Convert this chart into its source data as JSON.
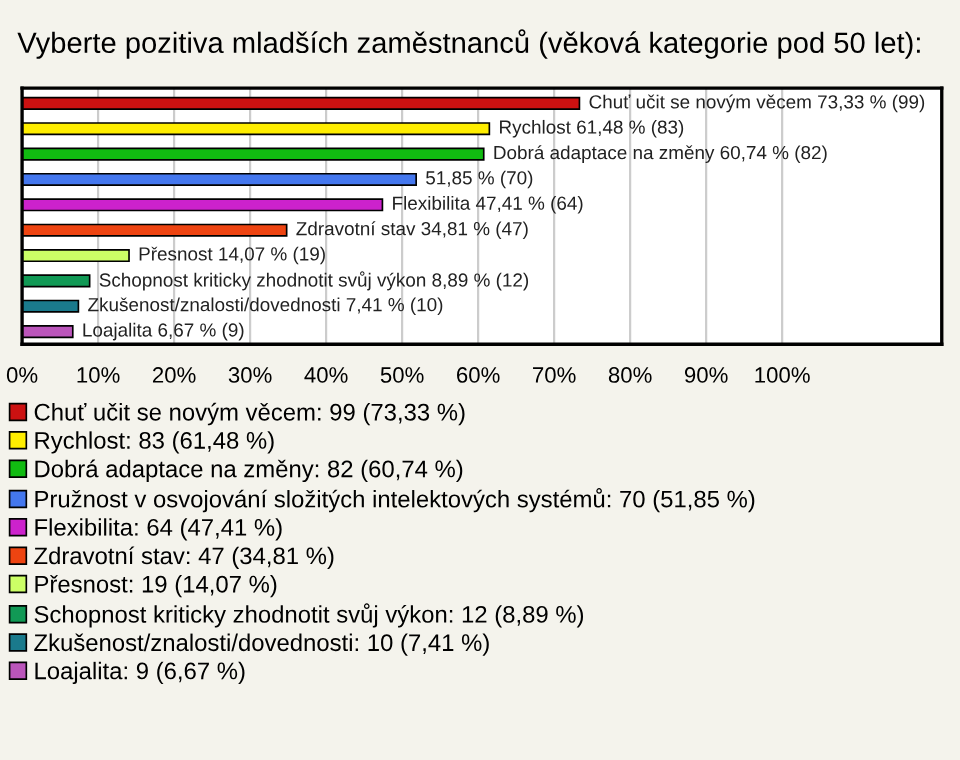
{
  "chart_data": {
    "type": "bar",
    "orientation": "horizontal",
    "stacked": true,
    "title": "Vyberte pozitiva mladších zaměstnanců (věková kategorie pod 50 let):",
    "categories": [
      null,
      null,
      null,
      null,
      null,
      null,
      null,
      null,
      null,
      null
    ],
    "series": [
      {
        "name": "Chuť učit se novým věcem: 99 (73,33 %)",
        "color": "#cc1111",
        "values": [
          73.33,
          null,
          null,
          null,
          null,
          null,
          null,
          null,
          null,
          null
        ],
        "value_labels": [
          "Chuť učit se novým věcem 73,33 % (99)",
          null,
          null,
          null,
          null,
          null,
          null,
          null,
          null,
          null
        ]
      },
      {
        "name": "Rychlost: 83 (61,48 %)",
        "color": "#ffee00",
        "values": [
          null,
          61.48,
          null,
          null,
          null,
          null,
          null,
          null,
          null,
          null
        ],
        "value_labels": [
          null,
          "Rychlost 61,48 % (83)",
          null,
          null,
          null,
          null,
          null,
          null,
          null,
          null
        ]
      },
      {
        "name": "Dobrá adaptace na změny: 82 (60,74 %)",
        "color": "#11bb11",
        "values": [
          null,
          null,
          60.74,
          null,
          null,
          null,
          null,
          null,
          null,
          null
        ],
        "value_labels": [
          null,
          null,
          "Dobrá adaptace na změny 60,74 % (82)",
          null,
          null,
          null,
          null,
          null,
          null,
          null
        ]
      },
      {
        "name": "Pružnost v osvojování složitých intelektových systémů: 70 (51,85 %)",
        "color": "#4477ee",
        "values": [
          null,
          null,
          null,
          51.85,
          null,
          null,
          null,
          null,
          null,
          null
        ],
        "value_labels": [
          null,
          null,
          null,
          "51,85 % (70)",
          null,
          null,
          null,
          null,
          null,
          null
        ]
      },
      {
        "name": "Flexibilita: 64 (47,41 %)",
        "color": "#cc22cc",
        "values": [
          null,
          null,
          null,
          null,
          47.41,
          null,
          null,
          null,
          null,
          null
        ],
        "value_labels": [
          null,
          null,
          null,
          null,
          "Flexibilita 47,41 % (64)",
          null,
          null,
          null,
          null,
          null
        ]
      },
      {
        "name": "Zdravotní stav: 47 (34,81 %)",
        "color": "#ee4411",
        "values": [
          null,
          null,
          null,
          null,
          null,
          34.81,
          null,
          null,
          null,
          null
        ],
        "value_labels": [
          null,
          null,
          null,
          null,
          null,
          "Zdravotní stav 34,81 % (47)",
          null,
          null,
          null,
          null
        ]
      },
      {
        "name": "Přesnost: 19 (14,07 %)",
        "color": "#ccff66",
        "values": [
          null,
          null,
          null,
          null,
          null,
          null,
          14.07,
          null,
          null,
          null
        ],
        "value_labels": [
          null,
          null,
          null,
          null,
          null,
          null,
          "Přesnost 14,07 % (19)",
          null,
          null,
          null
        ]
      },
      {
        "name": "Schopnost kriticky zhodnotit svůj výkon: 12 (8,89 %)",
        "color": "#119955",
        "values": [
          null,
          null,
          null,
          null,
          null,
          null,
          null,
          8.89,
          null,
          null
        ],
        "value_labels": [
          null,
          null,
          null,
          null,
          null,
          null,
          null,
          "Schopnost kriticky zhodnotit svůj výkon 8,89 % (12)",
          null,
          null
        ]
      },
      {
        "name": "Zkušenost/znalosti/dovednosti: 10 (7,41 %)",
        "color": "#1a7a8c",
        "values": [
          null,
          null,
          null,
          null,
          null,
          null,
          null,
          null,
          7.41,
          null
        ],
        "value_labels": [
          null,
          null,
          null,
          null,
          null,
          null,
          null,
          null,
          "Zkušenost/znalosti/dovednosti 7,41 % (10)",
          null
        ]
      },
      {
        "name": "Loajalita: 9 (6,67 %)",
        "color": "#bb55bb",
        "values": [
          null,
          null,
          null,
          null,
          null,
          null,
          null,
          null,
          null,
          6.67
        ],
        "value_labels": [
          null,
          null,
          null,
          null,
          null,
          null,
          null,
          null,
          null,
          "Loajalita 6,67 % (9)"
        ]
      }
    ],
    "xlim": [
      0,
      121
    ],
    "xticks": [
      {
        "value": 0,
        "label": "0%"
      },
      {
        "value": 10,
        "label": "10%"
      },
      {
        "value": 20,
        "label": "20%"
      },
      {
        "value": 30,
        "label": "30%"
      },
      {
        "value": 40,
        "label": "40%"
      },
      {
        "value": 50,
        "label": "50%"
      },
      {
        "value": 60,
        "label": "60%"
      },
      {
        "value": 70,
        "label": "70%"
      },
      {
        "value": 80,
        "label": "80%"
      },
      {
        "value": 90,
        "label": "90%"
      },
      {
        "value": 100,
        "label": "100%"
      }
    ],
    "grid": "x",
    "legend": "bottom",
    "tick_labels": "x"
  }
}
